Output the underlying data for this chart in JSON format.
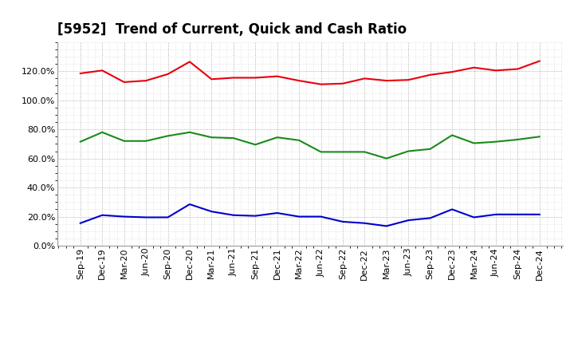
{
  "title": "[5952]  Trend of Current, Quick and Cash Ratio",
  "x_labels": [
    "Sep-19",
    "Dec-19",
    "Mar-20",
    "Jun-20",
    "Sep-20",
    "Dec-20",
    "Mar-21",
    "Jun-21",
    "Sep-21",
    "Dec-21",
    "Mar-22",
    "Jun-22",
    "Sep-22",
    "Dec-22",
    "Mar-23",
    "Jun-23",
    "Sep-23",
    "Dec-23",
    "Mar-24",
    "Jun-24",
    "Sep-24",
    "Dec-24"
  ],
  "current_ratio": [
    1.185,
    1.205,
    1.125,
    1.135,
    1.18,
    1.265,
    1.145,
    1.155,
    1.155,
    1.165,
    1.135,
    1.11,
    1.115,
    1.15,
    1.135,
    1.14,
    1.175,
    1.195,
    1.225,
    1.205,
    1.215,
    1.27
  ],
  "quick_ratio": [
    0.715,
    0.78,
    0.72,
    0.72,
    0.755,
    0.78,
    0.745,
    0.74,
    0.695,
    0.745,
    0.725,
    0.645,
    0.645,
    0.645,
    0.6,
    0.65,
    0.665,
    0.76,
    0.705,
    0.715,
    0.73,
    0.75
  ],
  "cash_ratio": [
    0.155,
    0.21,
    0.2,
    0.195,
    0.195,
    0.285,
    0.235,
    0.21,
    0.205,
    0.225,
    0.2,
    0.2,
    0.165,
    0.155,
    0.135,
    0.175,
    0.19,
    0.25,
    0.195,
    0.215,
    0.215,
    0.215
  ],
  "current_color": "#e8000d",
  "quick_color": "#1a8a1a",
  "cash_color": "#0000cc",
  "background_color": "#ffffff",
  "plot_bg_color": "#ffffff",
  "grid_color": "#999999",
  "ylim": [
    0.0,
    1.4
  ],
  "yticks": [
    0.0,
    0.2,
    0.4,
    0.6,
    0.8,
    1.0,
    1.2
  ],
  "line_width": 1.5,
  "title_fontsize": 12,
  "legend_fontsize": 9.5,
  "tick_fontsize": 8
}
